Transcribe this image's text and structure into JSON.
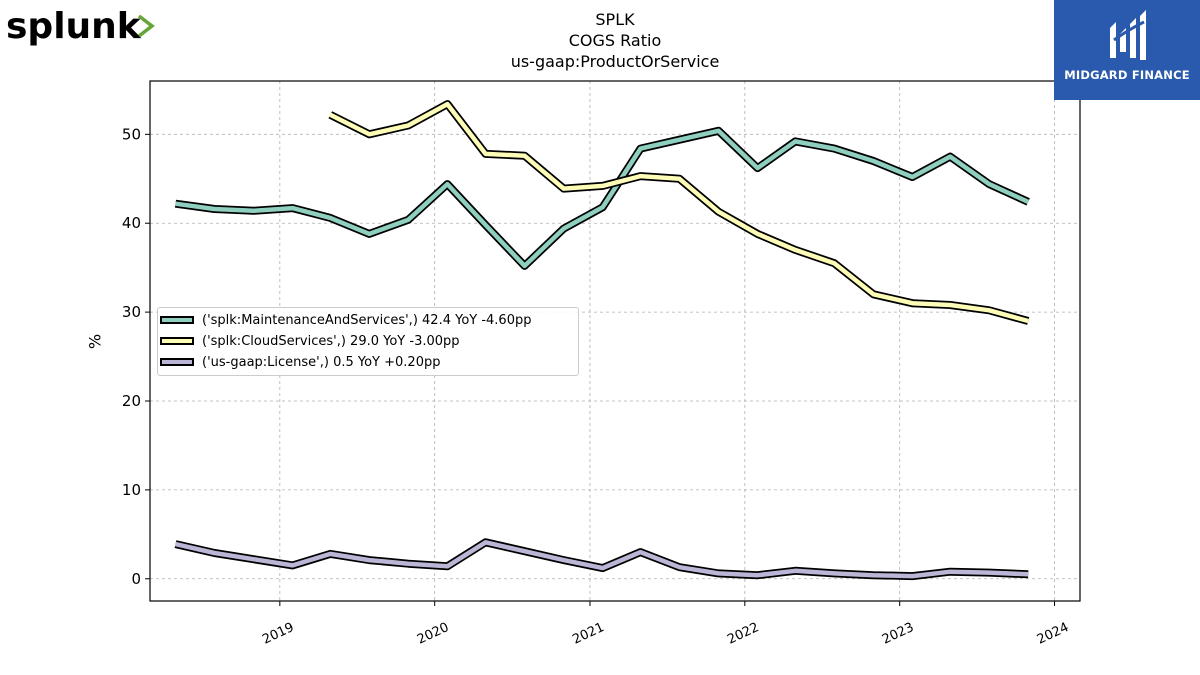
{
  "brand": {
    "left_logo_text": "splunk",
    "right_logo_text": "MIDGARD FINANCE"
  },
  "title_lines": [
    "SPLK",
    "COGS Ratio",
    "us-gaap:ProductOrService"
  ],
  "colors": {
    "maintenance": "#8ecfbf",
    "cloud": "#fdfdb8",
    "license": "#bcb6d6",
    "outline": "#000000",
    "grid": "#b0b0b0",
    "right_logo_bg": "#2a5aad",
    "splunk_green": "#65a637"
  },
  "chart_data": {
    "type": "line",
    "title": "SPLK\nCOGS Ratio\nus-gaap:ProductOrService",
    "xlabel": "",
    "ylabel": "%",
    "ylim": [
      -2.5,
      56
    ],
    "xlim": [
      "2018-03-01",
      "2024-03-01"
    ],
    "grid": true,
    "legend_position": "center-left",
    "yticks": [
      0,
      10,
      20,
      30,
      40,
      50
    ],
    "xticks": [
      "2019",
      "2020",
      "2021",
      "2022",
      "2023",
      "2024"
    ],
    "series": [
      {
        "name": "('splk:MaintenanceAndServices',) 42.4 YoY -4.60pp",
        "x": [
          "2018-04-30",
          "2018-07-31",
          "2018-10-31",
          "2019-01-31",
          "2019-04-30",
          "2019-07-31",
          "2019-10-31",
          "2020-01-31",
          "2020-04-30",
          "2020-07-31",
          "2020-10-31",
          "2021-01-31",
          "2021-04-30",
          "2021-07-31",
          "2021-10-31",
          "2022-01-31",
          "2022-04-30",
          "2022-07-31",
          "2022-10-31",
          "2023-01-31",
          "2023-04-30",
          "2023-07-31",
          "2023-10-31"
        ],
        "values": [
          42.2,
          41.6,
          41.4,
          41.7,
          40.6,
          38.8,
          40.4,
          44.4,
          39.8,
          35.2,
          39.4,
          41.8,
          48.4,
          49.4,
          50.4,
          46.2,
          49.2,
          48.4,
          47.0,
          45.2,
          47.5,
          44.4,
          42.4
        ]
      },
      {
        "name": "('splk:CloudServices',) 29.0 YoY -3.00pp",
        "x": [
          "2019-04-30",
          "2019-07-31",
          "2019-10-31",
          "2020-01-31",
          "2020-04-30",
          "2020-07-31",
          "2020-10-31",
          "2021-01-31",
          "2021-04-30",
          "2021-07-31",
          "2021-10-31",
          "2022-01-31",
          "2022-04-30",
          "2022-07-31",
          "2022-10-31",
          "2023-01-31",
          "2023-04-30",
          "2023-07-31",
          "2023-10-31"
        ],
        "values": [
          52.2,
          50.0,
          51.0,
          53.4,
          47.8,
          47.6,
          43.9,
          44.2,
          45.3,
          45.0,
          41.3,
          38.8,
          37.0,
          35.5,
          32.0,
          31.0,
          30.8,
          30.2,
          29.0
        ]
      },
      {
        "name": "('us-gaap:License',) 0.5 YoY +0.20pp",
        "x": [
          "2018-04-30",
          "2018-07-31",
          "2018-10-31",
          "2019-01-31",
          "2019-04-30",
          "2019-07-31",
          "2019-10-31",
          "2020-01-31",
          "2020-04-30",
          "2020-07-31",
          "2020-10-31",
          "2021-01-31",
          "2021-04-30",
          "2021-07-31",
          "2021-10-31",
          "2022-01-31",
          "2022-04-30",
          "2022-07-31",
          "2022-10-31",
          "2023-01-31",
          "2023-04-30",
          "2023-07-31",
          "2023-10-31"
        ],
        "values": [
          3.9,
          2.9,
          2.2,
          1.5,
          2.8,
          2.1,
          1.7,
          1.4,
          4.1,
          3.1,
          2.1,
          1.2,
          3.0,
          1.3,
          0.6,
          0.4,
          0.9,
          0.6,
          0.4,
          0.3,
          0.8,
          0.7,
          0.5
        ]
      }
    ]
  }
}
